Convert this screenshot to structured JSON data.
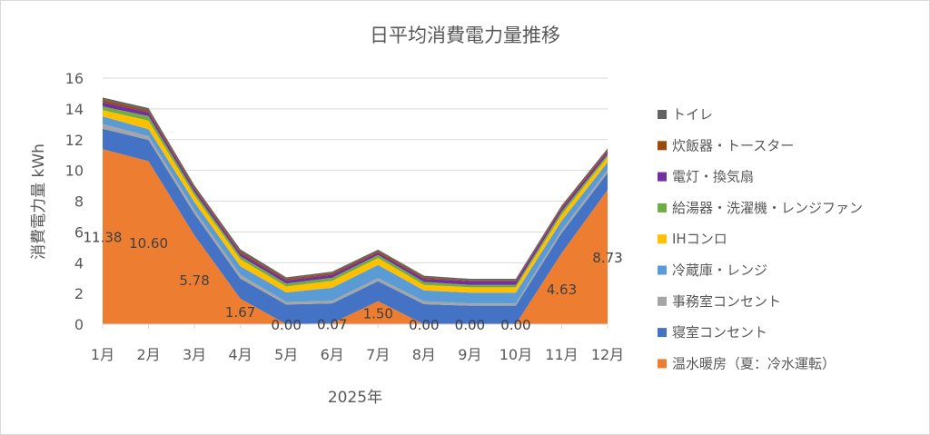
{
  "chart_data": {
    "type": "area",
    "stacked": true,
    "title": "日平均消費電力量推移",
    "xlabel": "2025年",
    "ylabel": "消費電力量 kWh",
    "ylim": [
      0,
      16
    ],
    "yticks": [
      0,
      2,
      4,
      6,
      8,
      10,
      12,
      14,
      16
    ],
    "grid": true,
    "legend_position": "right",
    "categories": [
      "1月",
      "2月",
      "3月",
      "4月",
      "5月",
      "6月",
      "7月",
      "8月",
      "9月",
      "10月",
      "11月",
      "12月"
    ],
    "series": [
      {
        "name": "温水暖房（夏：冷水運転）",
        "color": "#ED7D31",
        "show_labels": true,
        "values": [
          11.38,
          10.6,
          5.78,
          1.67,
          0.0,
          0.07,
          1.5,
          0.0,
          0.0,
          0.0,
          4.63,
          8.73
        ]
      },
      {
        "name": "寝室コンセント",
        "color": "#4472C4",
        "values": [
          1.33,
          1.38,
          1.4,
          1.3,
          1.28,
          1.28,
          1.3,
          1.3,
          1.2,
          1.2,
          1.3,
          1.1
        ]
      },
      {
        "name": "事務室コンセント",
        "color": "#A5A5A5",
        "values": [
          0.3,
          0.25,
          0.25,
          0.25,
          0.17,
          0.17,
          0.2,
          0.2,
          0.15,
          0.15,
          0.2,
          0.2
        ]
      },
      {
        "name": "冷蔵庫・レンジ",
        "color": "#5B9BD5",
        "values": [
          0.5,
          0.45,
          0.5,
          0.55,
          0.62,
          0.85,
          0.85,
          0.7,
          0.7,
          0.7,
          0.6,
          0.5
        ]
      },
      {
        "name": "IHコンロ",
        "color": "#FFC000",
        "values": [
          0.41,
          0.55,
          0.45,
          0.45,
          0.38,
          0.45,
          0.45,
          0.35,
          0.35,
          0.35,
          0.4,
          0.35
        ]
      },
      {
        "name": "給湯器・洗濯機・レンジファン",
        "color": "#70AD47",
        "values": [
          0.24,
          0.3,
          0.2,
          0.2,
          0.2,
          0.2,
          0.2,
          0.2,
          0.15,
          0.15,
          0.2,
          0.15
        ]
      },
      {
        "name": "電灯・換気扇",
        "color": "#7030A0",
        "values": [
          0.27,
          0.25,
          0.2,
          0.2,
          0.2,
          0.2,
          0.15,
          0.2,
          0.25,
          0.25,
          0.2,
          0.2
        ]
      },
      {
        "name": "炊飯器・トースター",
        "color": "#9E480E",
        "values": [
          0.16,
          0.12,
          0.1,
          0.1,
          0.1,
          0.1,
          0.1,
          0.1,
          0.05,
          0.05,
          0.1,
          0.1
        ]
      },
      {
        "name": "トイレ",
        "color": "#636363",
        "values": [
          0.15,
          0.15,
          0.15,
          0.15,
          0.1,
          0.1,
          0.1,
          0.1,
          0.1,
          0.1,
          0.1,
          0.1
        ]
      }
    ]
  }
}
